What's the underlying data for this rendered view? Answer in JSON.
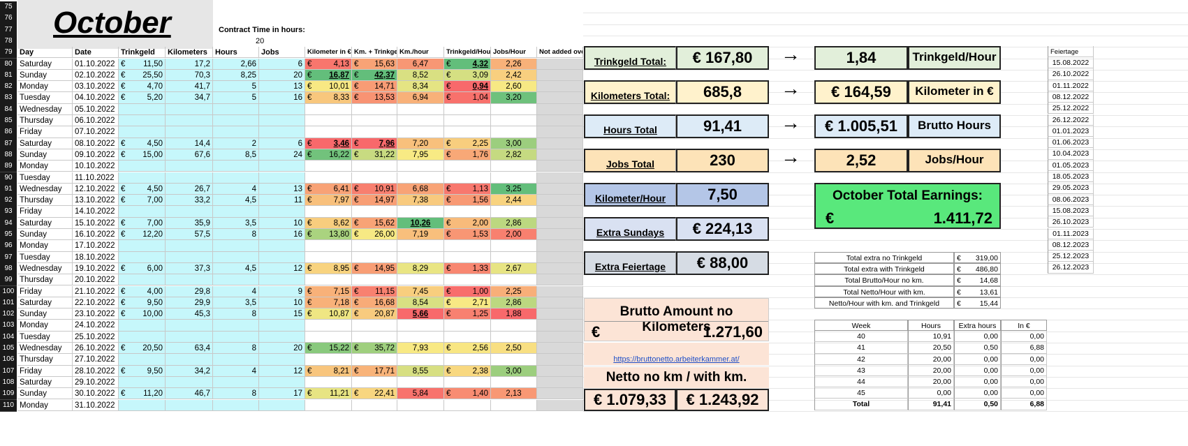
{
  "month_title": "October",
  "contract_label": "Contract Time in hours:",
  "contract_value": "20",
  "row_numbers": [
    "75",
    "76",
    "77",
    "78",
    "79",
    "80",
    "81",
    "82",
    "83",
    "84",
    "85",
    "86",
    "87",
    "88",
    "89",
    "90",
    "91",
    "92",
    "93",
    "94",
    "95",
    "96",
    "97",
    "98",
    "99",
    "100",
    "101",
    "102",
    "103",
    "104",
    "105",
    "106",
    "107",
    "108",
    "109",
    "110"
  ],
  "columns": [
    "Day",
    "Date",
    "Trinkgeld",
    "Kilometers",
    "Hours",
    "Jobs",
    "Kilometer in €",
    "Km. + Trinkgeld",
    "Km./hour",
    "Trinkgeld/Hour",
    "Jobs/Hour",
    "Not added over"
  ],
  "rows": [
    {
      "day": "Saturday",
      "date": "01.10.2022",
      "tip": "11,50",
      "km": "17,2",
      "hours": "2,66",
      "jobs": "6",
      "kmeur": "4,13",
      "kmtip": "15,63",
      "kmh": "6,47",
      "tiph": "4,32",
      "jobsh": "2,26"
    },
    {
      "day": "Sunday",
      "date": "02.10.2022",
      "tip": "25,50",
      "km": "70,3",
      "hours": "8,25",
      "jobs": "20",
      "kmeur": "16,87",
      "kmtip": "42,37",
      "kmh": "8,52",
      "tiph": "3,09",
      "jobsh": "2,42"
    },
    {
      "day": "Monday",
      "date": "03.10.2022",
      "tip": "4,70",
      "km": "41,7",
      "hours": "5",
      "jobs": "13",
      "kmeur": "10,01",
      "kmtip": "14,71",
      "kmh": "8,34",
      "tiph": "0,94",
      "jobsh": "2,60"
    },
    {
      "day": "Tuesday",
      "date": "04.10.2022",
      "tip": "5,20",
      "km": "34,7",
      "hours": "5",
      "jobs": "16",
      "kmeur": "8,33",
      "kmtip": "13,53",
      "kmh": "6,94",
      "tiph": "1,04",
      "jobsh": "3,20"
    },
    {
      "day": "Wednesday",
      "date": "05.10.2022"
    },
    {
      "day": "Thursday",
      "date": "06.10.2022"
    },
    {
      "day": "Friday",
      "date": "07.10.2022"
    },
    {
      "day": "Saturday",
      "date": "08.10.2022",
      "tip": "4,50",
      "km": "14,4",
      "hours": "2",
      "jobs": "6",
      "kmeur": "3,46",
      "kmtip": "7,96",
      "kmh": "7,20",
      "tiph": "2,25",
      "jobsh": "3,00"
    },
    {
      "day": "Sunday",
      "date": "09.10.2022",
      "tip": "15,00",
      "km": "67,6",
      "hours": "8,5",
      "jobs": "24",
      "kmeur": "16,22",
      "kmtip": "31,22",
      "kmh": "7,95",
      "tiph": "1,76",
      "jobsh": "2,82"
    },
    {
      "day": "Monday",
      "date": "10.10.2022"
    },
    {
      "day": "Tuesday",
      "date": "11.10.2022"
    },
    {
      "day": "Wednesday",
      "date": "12.10.2022",
      "tip": "4,50",
      "km": "26,7",
      "hours": "4",
      "jobs": "13",
      "kmeur": "6,41",
      "kmtip": "10,91",
      "kmh": "6,68",
      "tiph": "1,13",
      "jobsh": "3,25"
    },
    {
      "day": "Thursday",
      "date": "13.10.2022",
      "tip": "7,00",
      "km": "33,2",
      "hours": "4,5",
      "jobs": "11",
      "kmeur": "7,97",
      "kmtip": "14,97",
      "kmh": "7,38",
      "tiph": "1,56",
      "jobsh": "2,44"
    },
    {
      "day": "Friday",
      "date": "14.10.2022"
    },
    {
      "day": "Saturday",
      "date": "15.10.2022",
      "tip": "7,00",
      "km": "35,9",
      "hours": "3,5",
      "jobs": "10",
      "kmeur": "8,62",
      "kmtip": "15,62",
      "kmh": "10,26",
      "tiph": "2,00",
      "jobsh": "2,86"
    },
    {
      "day": "Sunday",
      "date": "16.10.2022",
      "tip": "12,20",
      "km": "57,5",
      "hours": "8",
      "jobs": "16",
      "kmeur": "13,80",
      "kmtip": "26,00",
      "kmh": "7,19",
      "tiph": "1,53",
      "jobsh": "2,00"
    },
    {
      "day": "Monday",
      "date": "17.10.2022"
    },
    {
      "day": "Tuesday",
      "date": "18.10.2022"
    },
    {
      "day": "Wednesday",
      "date": "19.10.2022",
      "tip": "6,00",
      "km": "37,3",
      "hours": "4,5",
      "jobs": "12",
      "kmeur": "8,95",
      "kmtip": "14,95",
      "kmh": "8,29",
      "tiph": "1,33",
      "jobsh": "2,67"
    },
    {
      "day": "Thursday",
      "date": "20.10.2022"
    },
    {
      "day": "Friday",
      "date": "21.10.2022",
      "tip": "4,00",
      "km": "29,8",
      "hours": "4",
      "jobs": "9",
      "kmeur": "7,15",
      "kmtip": "11,15",
      "kmh": "7,45",
      "tiph": "1,00",
      "jobsh": "2,25"
    },
    {
      "day": "Saturday",
      "date": "22.10.2022",
      "tip": "9,50",
      "km": "29,9",
      "hours": "3,5",
      "jobs": "10",
      "kmeur": "7,18",
      "kmtip": "16,68",
      "kmh": "8,54",
      "tiph": "2,71",
      "jobsh": "2,86"
    },
    {
      "day": "Sunday",
      "date": "23.10.2022",
      "tip": "10,00",
      "km": "45,3",
      "hours": "8",
      "jobs": "15",
      "kmeur": "10,87",
      "kmtip": "20,87",
      "kmh": "5,66",
      "tiph": "1,25",
      "jobsh": "1,88"
    },
    {
      "day": "Monday",
      "date": "24.10.2022"
    },
    {
      "day": "Tuesday",
      "date": "25.10.2022"
    },
    {
      "day": "Wednesday",
      "date": "26.10.2022",
      "tip": "20,50",
      "km": "63,4",
      "hours": "8",
      "jobs": "20",
      "kmeur": "15,22",
      "kmtip": "35,72",
      "kmh": "7,93",
      "tiph": "2,56",
      "jobsh": "2,50"
    },
    {
      "day": "Thursday",
      "date": "27.10.2022"
    },
    {
      "day": "Friday",
      "date": "28.10.2022",
      "tip": "9,50",
      "km": "34,2",
      "hours": "4",
      "jobs": "12",
      "kmeur": "8,21",
      "kmtip": "17,71",
      "kmh": "8,55",
      "tiph": "2,38",
      "jobsh": "3,00"
    },
    {
      "day": "Saturday",
      "date": "29.10.2022"
    },
    {
      "day": "Sunday",
      "date": "30.10.2022",
      "tip": "11,20",
      "km": "46,7",
      "hours": "8",
      "jobs": "17",
      "kmeur": "11,21",
      "kmtip": "22,41",
      "kmh": "5,84",
      "tiph": "1,40",
      "jobsh": "2,13"
    },
    {
      "day": "Monday",
      "date": "31.10.2022"
    }
  ],
  "euro": "€",
  "kpis": {
    "trinkgeld_total": {
      "label": "Trinkgeld Total:",
      "value": "€    167,80"
    },
    "km_total": {
      "label": "Kilometers Total:",
      "value": "685,8"
    },
    "hours_total": {
      "label": "Hours Total",
      "value": "91,41"
    },
    "jobs_total": {
      "label": "Jobs Total",
      "value": "230"
    },
    "km_hour": {
      "label": "Kilometer/Hour",
      "value": "7,50"
    },
    "extra_sundays": {
      "label": "Extra Sundays",
      "value": "€    224,13"
    },
    "extra_feiertage": {
      "label": "Extra Feiertage",
      "value": "€      88,00"
    }
  },
  "derived": {
    "tip_hour": {
      "value": "1,84",
      "label": "Trinkgeld/Hour"
    },
    "km_eur": {
      "value": "€    164,59",
      "label": "Kilometer in €"
    },
    "brutto_hours": {
      "value": "€ 1.005,51",
      "label": "Brutto Hours"
    },
    "jobs_hour": {
      "value": "2,52",
      "label": "Jobs/Hour"
    }
  },
  "arrow": "→",
  "total_earnings": {
    "label": "October Total Earnings:",
    "currency": "€",
    "value": "1.411,72"
  },
  "brutto_no_km": {
    "label": "Brutto Amount no Kilometers",
    "currency": "€",
    "value": "1.271,60"
  },
  "link": "https://bruttonetto.arbeiterkammer.at/",
  "netto": {
    "label": "Netto no km / with km.",
    "no_km": "€ 1.079,33",
    "with_km": "€ 1.243,92"
  },
  "extras": [
    {
      "label": "Total extra no Trinkgeld",
      "value": "319,00"
    },
    {
      "label": "Total extra with Trinkgeld",
      "value": "486,80"
    },
    {
      "label": "Total Brutto/Hour no km.",
      "value": "14,68"
    },
    {
      "label": "Total  Netto/Hour with km.",
      "value": "13,61"
    },
    {
      "label": "Netto/Hour with km. and Trinkgeld",
      "value": "15,44"
    }
  ],
  "week_table": {
    "headers": [
      "Week",
      "Hours",
      "Extra hours",
      "In €"
    ],
    "rows": [
      [
        "40",
        "10,91",
        "0,00",
        "0,00"
      ],
      [
        "41",
        "20,50",
        "0,50",
        "6,88"
      ],
      [
        "42",
        "20,00",
        "0,00",
        "0,00"
      ],
      [
        "43",
        "20,00",
        "0,00",
        "0,00"
      ],
      [
        "44",
        "20,00",
        "0,00",
        "0,00"
      ],
      [
        "45",
        "0,00",
        "0,00",
        "0,00"
      ],
      [
        "Total",
        "91,41",
        "0,50",
        "6,88"
      ]
    ]
  },
  "feiertage": {
    "header": "Feiertage",
    "dates": [
      "15.08.2022",
      "26.10.2022",
      "01.11.2022",
      "08.12.2022",
      "25.12.2022",
      "26.12.2022",
      "01.01.2023",
      "01.06.2023",
      "10.04.2023",
      "01.05.2023",
      "18.05.2023",
      "29.05.2023",
      "08.06.2023",
      "15.08.2023",
      "26.10.2023",
      "01.11.2023",
      "08.12.2023",
      "25.12.2023",
      "26.12.2023"
    ]
  },
  "colors": {
    "cyan": "#c6f7fb",
    "green_box": "#e2efda",
    "yellow_box": "#fff2cc",
    "blue_box": "#ddebf7",
    "orange_box": "#fce4d6",
    "total_green": "#59e87c"
  }
}
